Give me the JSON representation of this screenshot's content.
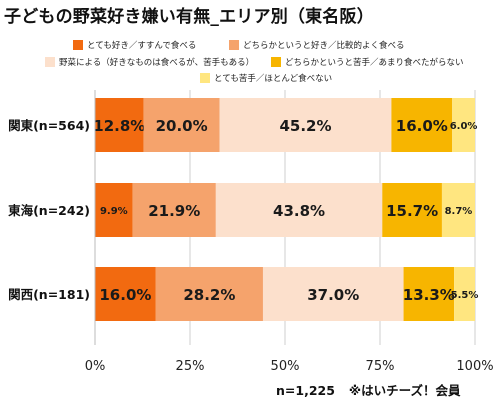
{
  "title": "子どもの野菜好き嫌い有無_エリア別（東名阪）",
  "footer": {
    "sample": "n=1,225",
    "source": "※はいチーズ！会員"
  },
  "chart_data": {
    "type": "bar",
    "orientation": "horizontal",
    "stacked": true,
    "percent": true,
    "categories": [
      "関東(n=564)",
      "東海(n=242)",
      "関西(n=181)"
    ],
    "series": [
      {
        "name": "とても好き／すすんで食べる",
        "color": "#F26A10",
        "values": [
          12.8,
          9.9,
          16.0
        ]
      },
      {
        "name": "どちらかというと好き／比較的よく食べる",
        "color": "#F5A36C",
        "values": [
          20.0,
          21.9,
          28.2
        ]
      },
      {
        "name": "野菜による（好きなものは食べるが、苦手もある）",
        "color": "#FCE0CC",
        "values": [
          45.2,
          43.8,
          37.0
        ]
      },
      {
        "name": "どちらかというと苦手／あまり食べたがらない",
        "color": "#F7B500",
        "values": [
          16.0,
          15.7,
          13.3
        ]
      },
      {
        "name": "とても苦手／ほとんど食べない",
        "color": "#FFE680",
        "values": [
          6.0,
          8.7,
          5.5
        ]
      }
    ],
    "xlim": [
      0,
      100
    ],
    "xticks": [
      "0%",
      "25%",
      "50%",
      "75%",
      "100%"
    ],
    "grid": true,
    "legend_position": "top"
  }
}
